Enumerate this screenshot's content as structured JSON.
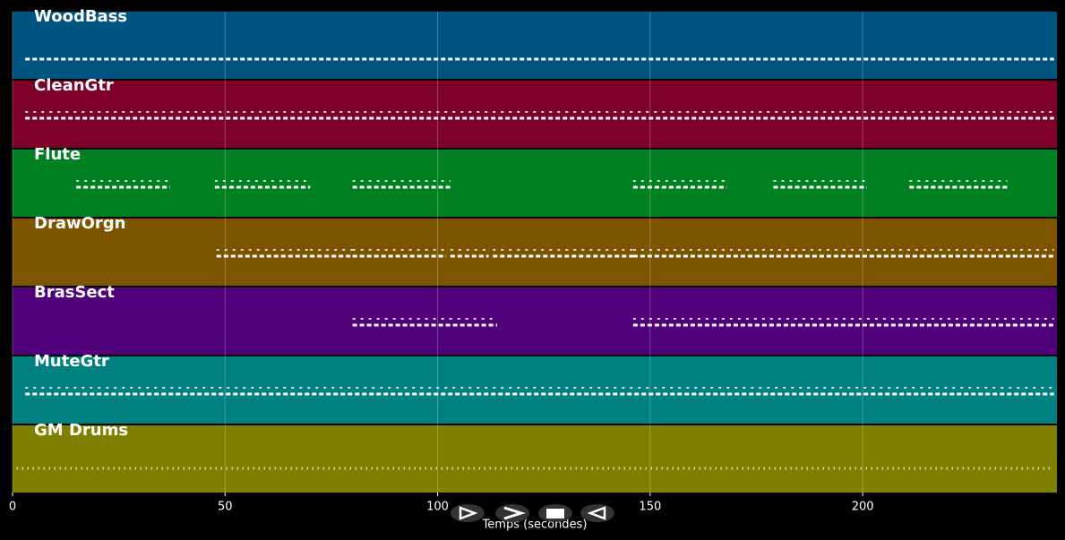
{
  "chart_data": {
    "type": "tracks",
    "xlabel": "Temps (secondes)",
    "xlim": [
      0,
      245.7
    ],
    "xticks": [
      0,
      50,
      100,
      150,
      200
    ],
    "grid": true,
    "series": [
      {
        "name": "WoodBass",
        "color": "#005580",
        "spans": [
          [
            3,
            245
          ]
        ]
      },
      {
        "name": "CleanGtr",
        "color": "#7d0028",
        "spans": [
          [
            3,
            245
          ]
        ]
      },
      {
        "name": "Flute",
        "color": "#008020",
        "spans": [
          [
            15,
            37
          ],
          [
            47.6,
            70
          ],
          [
            80,
            103
          ],
          [
            146,
            168
          ],
          [
            179,
            201
          ],
          [
            211,
            234
          ]
        ]
      },
      {
        "name": "DrawOrgn",
        "color": "#7d5500",
        "spans": [
          [
            48,
            70
          ],
          [
            70,
            80
          ],
          [
            80,
            102
          ],
          [
            103,
            112
          ],
          [
            113,
            146
          ],
          [
            146,
            245
          ]
        ]
      },
      {
        "name": "BrasSect",
        "color": "#500078",
        "spans": [
          [
            80,
            114
          ],
          [
            146,
            245
          ]
        ]
      },
      {
        "name": "MuteGtr",
        "color": "#008080",
        "spans": [
          [
            3,
            245
          ]
        ]
      },
      {
        "name": "GM Drums",
        "color": "#808000",
        "spans": [
          [
            1,
            245
          ]
        ]
      }
    ]
  }
}
